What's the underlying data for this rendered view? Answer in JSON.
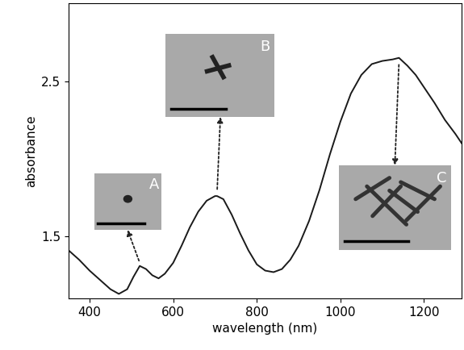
{
  "chart_data": {
    "type": "line",
    "x_label": "wavelength (nm)",
    "y_label": "absorbance",
    "x": [
      350,
      375,
      400,
      425,
      450,
      470,
      490,
      505,
      520,
      535,
      550,
      565,
      580,
      600,
      620,
      640,
      660,
      680,
      700,
      705,
      720,
      740,
      760,
      780,
      800,
      820,
      840,
      860,
      880,
      900,
      925,
      950,
      975,
      1000,
      1025,
      1050,
      1075,
      1100,
      1125,
      1140,
      1160,
      1180,
      1200,
      1225,
      1250,
      1275,
      1290
    ],
    "series": [
      {
        "name": "absorbance",
        "color": "#1a1a1a",
        "values": [
          1.41,
          1.35,
          1.28,
          1.22,
          1.16,
          1.13,
          1.16,
          1.24,
          1.31,
          1.29,
          1.25,
          1.23,
          1.26,
          1.33,
          1.44,
          1.56,
          1.66,
          1.73,
          1.76,
          1.76,
          1.74,
          1.64,
          1.52,
          1.41,
          1.32,
          1.28,
          1.27,
          1.29,
          1.35,
          1.44,
          1.6,
          1.8,
          2.03,
          2.24,
          2.42,
          2.54,
          2.61,
          2.63,
          2.64,
          2.65,
          2.6,
          2.54,
          2.46,
          2.36,
          2.25,
          2.16,
          2.1
        ]
      }
    ],
    "xlim": [
      350,
      1290
    ],
    "ylim": [
      1.1,
      3.0
    ],
    "xticks": [
      400,
      600,
      800,
      1000,
      1200
    ],
    "yticks": [
      1.5,
      2.5
    ],
    "grid": false,
    "annotations": [
      {
        "text": "A",
        "x": 520,
        "y": 1.33
      },
      {
        "text": "B",
        "x": 705,
        "y": 1.79
      },
      {
        "text": "C",
        "x": 1140,
        "y": 2.62
      }
    ]
  }
}
